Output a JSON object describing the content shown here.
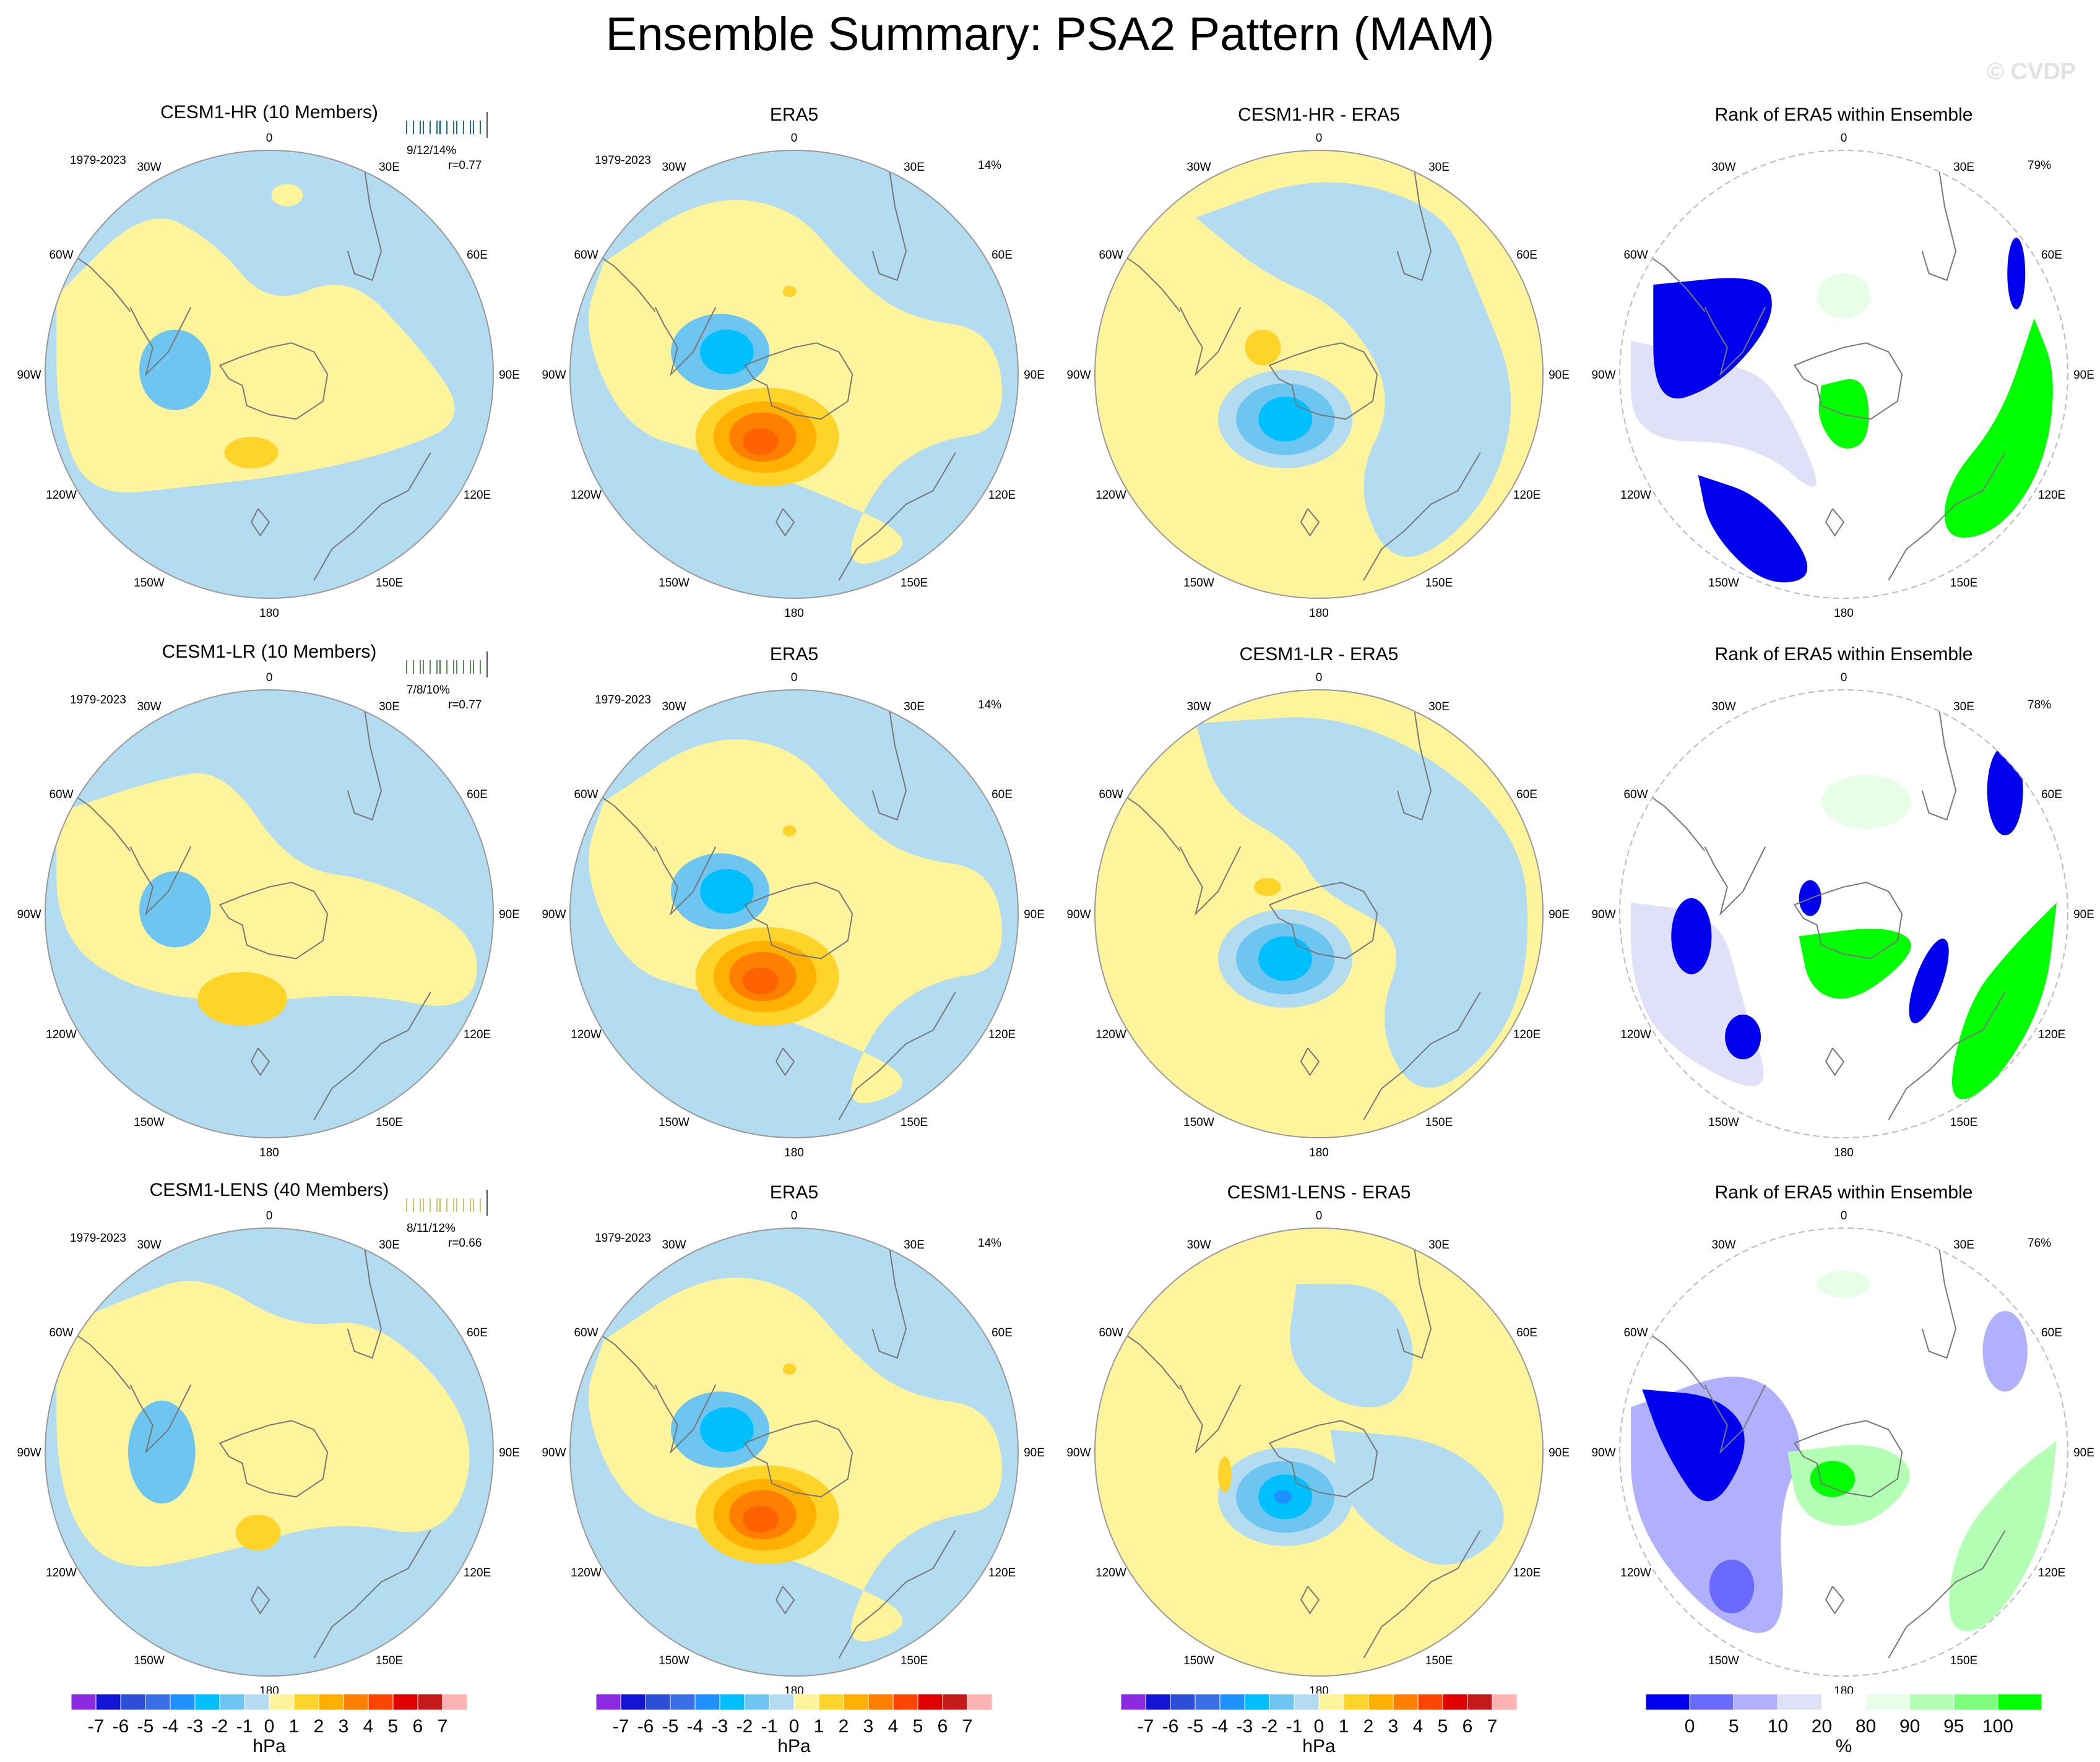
{
  "title": "Ensemble Summary: PSA2 Pattern (MAM)",
  "watermark": "© CVDP",
  "colors": {
    "ocean_blue_light": "#b3dcf0",
    "land_yellow_light": "#fef49b",
    "rank_blue_dark": "#0000ee",
    "rank_green_bright": "#00ff00"
  },
  "chart_data": {
    "type": "polar-stereographic contour map grid",
    "variable": "sea level pressure anomaly pattern",
    "units_pattern": "hPa",
    "units_rank": "%",
    "longitude_labels": [
      "0",
      "30E",
      "60E",
      "90E",
      "120E",
      "150E",
      "180",
      "150W",
      "120W",
      "90W",
      "60W",
      "30W"
    ],
    "rows": [
      {
        "model_title": "CESM1-HR (10 Members)",
        "model_color": "#1f6e8c",
        "period": "1979-2023",
        "member_stats": "9/12/14%",
        "pattern_corr": "r=0.77",
        "obs_title": "ERA5",
        "obs_period": "1979-2023",
        "obs_pct": "14%",
        "diff_title": "CESM1-HR - ERA5",
        "rank_title": "Rank of ERA5 within Ensemble",
        "rank_pct": "79%"
      },
      {
        "model_title": "CESM1-LR (10 Members)",
        "model_color": "#5e8a5e",
        "period": "1979-2023",
        "member_stats": "7/8/10%",
        "pattern_corr": "r=0.77",
        "obs_title": "ERA5",
        "obs_period": "1979-2023",
        "obs_pct": "14%",
        "diff_title": "CESM1-LR - ERA5",
        "rank_title": "Rank of ERA5 within Ensemble",
        "rank_pct": "78%"
      },
      {
        "model_title": "CESM1-LENS (40 Members)",
        "model_color": "#d6c26a",
        "period": "1979-2023",
        "member_stats": "8/11/12%",
        "pattern_corr": "r=0.66",
        "obs_title": "ERA5",
        "obs_period": "1979-2023",
        "obs_pct": "14%",
        "diff_title": "CESM1-LENS - ERA5",
        "rank_title": "Rank of ERA5 within Ensemble",
        "rank_pct": "76%"
      }
    ],
    "colorbar_hpa": {
      "label": "hPa",
      "ticks": [
        "-7",
        "-6",
        "-5",
        "-4",
        "-3",
        "-2",
        "-1",
        "0",
        "1",
        "2",
        "3",
        "4",
        "5",
        "6",
        "7"
      ],
      "colors": [
        "#8a2be2",
        "#1414d4",
        "#2d4fd8",
        "#3a6fe8",
        "#1e90ff",
        "#00bfff",
        "#6ec6f0",
        "#b3dcf0",
        "#fef49b",
        "#ffd42a",
        "#ffb000",
        "#ff8000",
        "#ff4500",
        "#e00000",
        "#c41a1a",
        "#ffb3b3"
      ]
    },
    "colorbar_rank": {
      "label": "%",
      "ticks": [
        "0",
        "5",
        "10",
        "20",
        "80",
        "90",
        "95",
        "100"
      ],
      "colors": [
        "#0000ee",
        "#6a6aff",
        "#b0b0ff",
        "#e0e0f8",
        "#ffffff",
        "#e6ffe6",
        "#b3ffb3",
        "#7dff7d",
        "#00ff00"
      ]
    }
  }
}
